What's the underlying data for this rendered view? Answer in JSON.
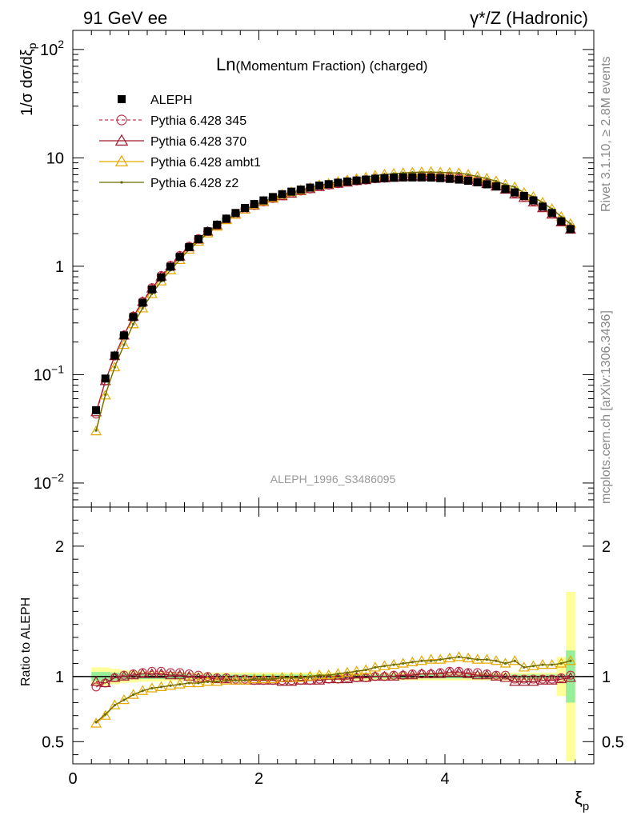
{
  "header": {
    "left": "91 GeV ee",
    "right": "γ*/Z (Hadronic)"
  },
  "side_labels": {
    "rivet": "Rivet 3.1.10, ≥ 2.8M events",
    "mcplots": "mcplots.cern.ch [arXiv:1306.3436]"
  },
  "chart_data": {
    "type": "scatter",
    "title": "Ln(Momentum Fraction) (charged)",
    "title_prefix": "Ln",
    "title_rest": "(Momentum Fraction) (charged)",
    "analysis_label": "ALEPH_1996_S3486095",
    "xlabel": "ξp",
    "ylabel": "1/σ dσ/dξp",
    "ratio_ylabel": "Ratio to ALEPH",
    "xlim": [
      0,
      5.6
    ],
    "ylim": [
      0.006,
      150
    ],
    "yscale": "log",
    "ratio_ylim": [
      0.33,
      2.3
    ],
    "x_ticks": [
      "0",
      "2",
      "4"
    ],
    "y_ticks": [
      "10^-2",
      "10^-1",
      "1",
      "10",
      "10^2"
    ],
    "ratio_ticks": [
      "0.5",
      "1",
      "2"
    ],
    "legend_position": "top-left",
    "x": [
      0.25,
      0.35,
      0.45,
      0.55,
      0.65,
      0.75,
      0.85,
      0.95,
      1.05,
      1.15,
      1.25,
      1.35,
      1.45,
      1.55,
      1.65,
      1.75,
      1.85,
      1.95,
      2.05,
      2.15,
      2.25,
      2.35,
      2.45,
      2.55,
      2.65,
      2.75,
      2.85,
      2.95,
      3.05,
      3.15,
      3.25,
      3.35,
      3.45,
      3.55,
      3.65,
      3.75,
      3.85,
      3.95,
      4.05,
      4.15,
      4.25,
      4.35,
      4.45,
      4.55,
      4.65,
      4.75,
      4.85,
      4.95,
      5.05,
      5.15,
      5.25,
      5.35
    ],
    "series": [
      {
        "name": "ALEPH",
        "color": "#000000",
        "marker": "square",
        "values": [
          0.047,
          0.092,
          0.15,
          0.23,
          0.34,
          0.46,
          0.61,
          0.79,
          0.99,
          1.22,
          1.5,
          1.78,
          2.1,
          2.42,
          2.75,
          3.1,
          3.45,
          3.75,
          4.05,
          4.35,
          4.62,
          4.88,
          5.1,
          5.32,
          5.55,
          5.72,
          5.9,
          6.05,
          6.18,
          6.3,
          6.42,
          6.5,
          6.56,
          6.6,
          6.6,
          6.6,
          6.58,
          6.5,
          6.4,
          6.3,
          6.15,
          5.95,
          5.7,
          5.45,
          5.15,
          4.8,
          4.45,
          4.05,
          3.55,
          3.1,
          2.6,
          2.2
        ],
        "ratio": [
          1,
          1,
          1,
          1,
          1,
          1,
          1,
          1,
          1,
          1,
          1,
          1,
          1,
          1,
          1,
          1,
          1,
          1,
          1,
          1,
          1,
          1,
          1,
          1,
          1,
          1,
          1,
          1,
          1,
          1,
          1,
          1,
          1,
          1,
          1,
          1,
          1,
          1,
          1,
          1,
          1,
          1,
          1,
          1,
          1,
          1,
          1,
          1,
          1,
          1,
          1,
          1
        ],
        "band_green": [
          0.035,
          0.035,
          0.03,
          0.025,
          0.02,
          0.02,
          0.02,
          0.02,
          0.02,
          0.02,
          0.015,
          0.015,
          0.015,
          0.015,
          0.015,
          0.015,
          0.015,
          0.015,
          0.015,
          0.015,
          0.015,
          0.015,
          0.015,
          0.015,
          0.015,
          0.015,
          0.015,
          0.015,
          0.015,
          0.015,
          0.015,
          0.015,
          0.015,
          0.015,
          0.015,
          0.015,
          0.015,
          0.015,
          0.015,
          0.015,
          0.015,
          0.015,
          0.015,
          0.015,
          0.015,
          0.015,
          0.015,
          0.015,
          0.015,
          0.015,
          0.015,
          0.2
        ],
        "band_yellow": [
          0.07,
          0.07,
          0.06,
          0.05,
          0.045,
          0.04,
          0.04,
          0.04,
          0.035,
          0.035,
          0.03,
          0.03,
          0.03,
          0.03,
          0.03,
          0.03,
          0.03,
          0.03,
          0.03,
          0.03,
          0.03,
          0.03,
          0.03,
          0.03,
          0.03,
          0.03,
          0.03,
          0.03,
          0.03,
          0.03,
          0.03,
          0.03,
          0.03,
          0.03,
          0.03,
          0.03,
          0.03,
          0.03,
          0.03,
          0.03,
          0.03,
          0.03,
          0.03,
          0.03,
          0.03,
          0.03,
          0.03,
          0.03,
          0.03,
          0.03,
          0.15,
          0.65
        ]
      },
      {
        "name": "Pythia 6.428 345",
        "color": "#c0394e",
        "marker": "circle",
        "dashed": true,
        "ratio": [
          0.92,
          0.95,
          0.99,
          1.01,
          1.02,
          1.03,
          1.04,
          1.04,
          1.03,
          1.03,
          1.02,
          1.01,
          1.0,
          0.99,
          0.99,
          0.98,
          0.98,
          0.97,
          0.97,
          0.97,
          0.97,
          0.97,
          0.97,
          0.97,
          0.98,
          0.98,
          0.98,
          0.99,
          0.99,
          0.99,
          1.0,
          1.0,
          1.01,
          1.01,
          1.02,
          1.02,
          1.02,
          1.03,
          1.04,
          1.04,
          1.03,
          1.03,
          1.02,
          1.01,
          1.01,
          0.98,
          0.98,
          0.98,
          0.98,
          0.98,
          0.99,
          1.01
        ]
      },
      {
        "name": "Pythia 6.428 370",
        "color": "#a01c2f",
        "marker": "triangle",
        "dashed": false,
        "ratio": [
          0.96,
          0.95,
          0.99,
          1.0,
          1.01,
          1.02,
          1.02,
          1.02,
          1.01,
          1.01,
          1.0,
          0.99,
          0.99,
          0.98,
          0.98,
          0.97,
          0.97,
          0.97,
          0.97,
          0.97,
          0.96,
          0.96,
          0.97,
          0.97,
          0.97,
          0.98,
          0.98,
          0.98,
          0.99,
          0.99,
          1.0,
          1.0,
          1.0,
          1.01,
          1.01,
          1.02,
          1.02,
          1.02,
          1.03,
          1.03,
          1.02,
          1.01,
          1.01,
          1.0,
          0.99,
          0.96,
          0.96,
          0.96,
          0.97,
          0.97,
          0.98,
          0.99
        ]
      },
      {
        "name": "Pythia 6.428 ambt1",
        "color": "#e6a800",
        "marker": "triangle",
        "dashed": false,
        "ratio": [
          0.64,
          0.7,
          0.78,
          0.82,
          0.86,
          0.89,
          0.91,
          0.92,
          0.93,
          0.94,
          0.95,
          0.95,
          0.96,
          0.96,
          0.97,
          0.97,
          0.97,
          0.98,
          0.98,
          0.98,
          0.99,
          0.99,
          0.99,
          1.0,
          1.01,
          1.01,
          1.02,
          1.03,
          1.04,
          1.05,
          1.07,
          1.08,
          1.09,
          1.1,
          1.11,
          1.12,
          1.13,
          1.13,
          1.14,
          1.15,
          1.14,
          1.13,
          1.13,
          1.12,
          1.1,
          1.12,
          1.07,
          1.08,
          1.09,
          1.09,
          1.1,
          1.12
        ]
      },
      {
        "name": "Pythia 6.428 z2",
        "color": "#6b6b00",
        "marker": "dot",
        "dashed": false,
        "ratio": [
          0.65,
          0.71,
          0.78,
          0.82,
          0.86,
          0.89,
          0.91,
          0.92,
          0.93,
          0.94,
          0.95,
          0.95,
          0.96,
          0.96,
          0.97,
          0.97,
          0.97,
          0.98,
          0.98,
          0.98,
          0.99,
          0.99,
          0.99,
          1.0,
          1.01,
          1.01,
          1.02,
          1.03,
          1.04,
          1.05,
          1.07,
          1.08,
          1.09,
          1.1,
          1.11,
          1.12,
          1.12,
          1.13,
          1.14,
          1.15,
          1.14,
          1.13,
          1.13,
          1.12,
          1.1,
          1.12,
          1.07,
          1.08,
          1.09,
          1.09,
          1.1,
          1.12
        ]
      }
    ]
  }
}
